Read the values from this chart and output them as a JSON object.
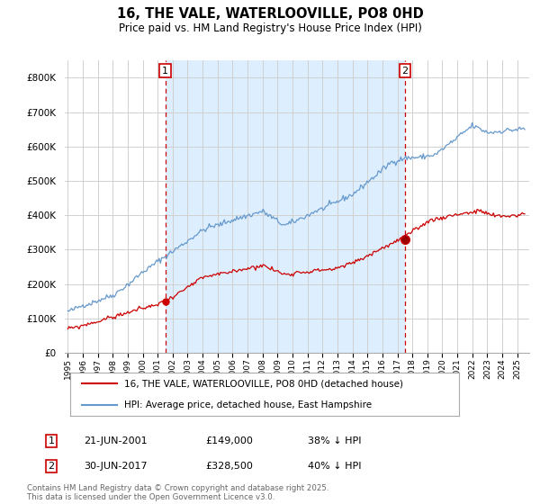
{
  "title": "16, THE VALE, WATERLOOVILLE, PO8 0HD",
  "subtitle": "Price paid vs. HM Land Registry's House Price Index (HPI)",
  "legend_line1": "16, THE VALE, WATERLOOVILLE, PO8 0HD (detached house)",
  "legend_line2": "HPI: Average price, detached house, East Hampshire",
  "footnote": "Contains HM Land Registry data © Crown copyright and database right 2025.\nThis data is licensed under the Open Government Licence v3.0.",
  "annotation1": {
    "label": "1",
    "date": "21-JUN-2001",
    "price": "£149,000",
    "pct": "38% ↓ HPI"
  },
  "annotation2": {
    "label": "2",
    "date": "30-JUN-2017",
    "price": "£328,500",
    "pct": "40% ↓ HPI"
  },
  "ylim": [
    0,
    850000
  ],
  "yticks": [
    0,
    100000,
    200000,
    300000,
    400000,
    500000,
    600000,
    700000,
    800000
  ],
  "background_color": "#ffffff",
  "fill_color": "#ddeeff",
  "grid_color": "#d0d0d0",
  "red_color": "#cc0000",
  "blue_color": "#6699cc",
  "sale1_year": 2001.5,
  "sale1_price": 149000,
  "sale2_year": 2017.5,
  "sale2_price": 328500
}
